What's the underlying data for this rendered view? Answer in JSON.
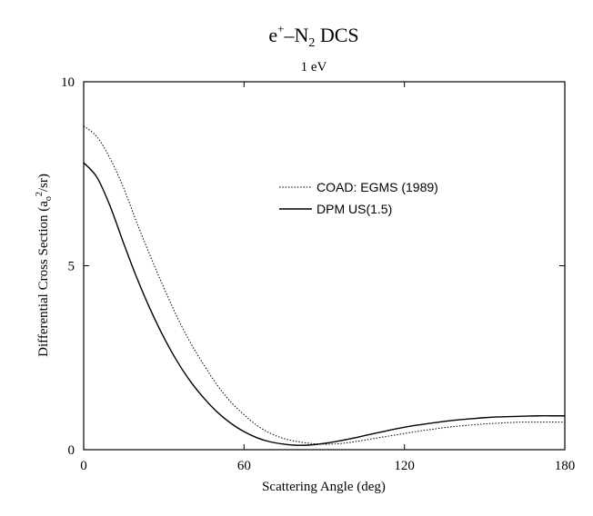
{
  "chart_data": {
    "type": "line",
    "title_parts": {
      "e": "e",
      "plus": "+",
      "dash": "–N",
      "sub2": "2",
      "dcs": " DCS"
    },
    "subtitle": "1 eV",
    "xlabel": "Scattering Angle (deg)",
    "ylabel_parts": {
      "prefix": "Differential Cross Section (a",
      "sub_o": "o",
      "sup_2": "2",
      "suffix": "/sr)"
    },
    "xlim": [
      0,
      180
    ],
    "ylim": [
      0,
      10
    ],
    "xticks": [
      0,
      60,
      120,
      180
    ],
    "yticks": [
      0,
      5,
      10
    ],
    "xtick_labels": [
      "0",
      "60",
      "120",
      "180"
    ],
    "ytick_labels": [
      "0",
      "5",
      "10"
    ],
    "legend_position": "upper-right",
    "series": [
      {
        "name": "COAD: EGMS (1989)",
        "style": "dotted",
        "color": "#000000",
        "x": [
          0,
          5,
          10,
          15,
          20,
          25,
          30,
          35,
          40,
          45,
          50,
          55,
          60,
          65,
          70,
          75,
          80,
          85,
          90,
          95,
          100,
          105,
          110,
          115,
          120,
          125,
          130,
          135,
          140,
          145,
          150,
          155,
          160,
          165,
          170,
          175,
          180
        ],
        "y": [
          8.8,
          8.5,
          7.9,
          7.1,
          6.15,
          5.25,
          4.4,
          3.6,
          2.9,
          2.3,
          1.75,
          1.3,
          0.95,
          0.65,
          0.44,
          0.3,
          0.22,
          0.17,
          0.15,
          0.16,
          0.2,
          0.26,
          0.32,
          0.38,
          0.44,
          0.5,
          0.55,
          0.6,
          0.64,
          0.67,
          0.7,
          0.72,
          0.74,
          0.75,
          0.75,
          0.75,
          0.75
        ]
      },
      {
        "name": "DPM US(1.5)",
        "style": "solid",
        "color": "#000000",
        "x": [
          0,
          5,
          10,
          15,
          20,
          25,
          30,
          35,
          40,
          45,
          50,
          55,
          60,
          65,
          70,
          75,
          80,
          85,
          90,
          95,
          100,
          105,
          110,
          115,
          120,
          125,
          130,
          135,
          140,
          145,
          150,
          155,
          160,
          165,
          170,
          175,
          180
        ],
        "y": [
          7.8,
          7.4,
          6.6,
          5.6,
          4.65,
          3.8,
          3.05,
          2.4,
          1.85,
          1.4,
          1.02,
          0.72,
          0.49,
          0.32,
          0.21,
          0.15,
          0.12,
          0.13,
          0.17,
          0.23,
          0.3,
          0.38,
          0.46,
          0.54,
          0.61,
          0.67,
          0.72,
          0.77,
          0.81,
          0.84,
          0.87,
          0.89,
          0.9,
          0.91,
          0.92,
          0.92,
          0.92
        ]
      }
    ]
  }
}
